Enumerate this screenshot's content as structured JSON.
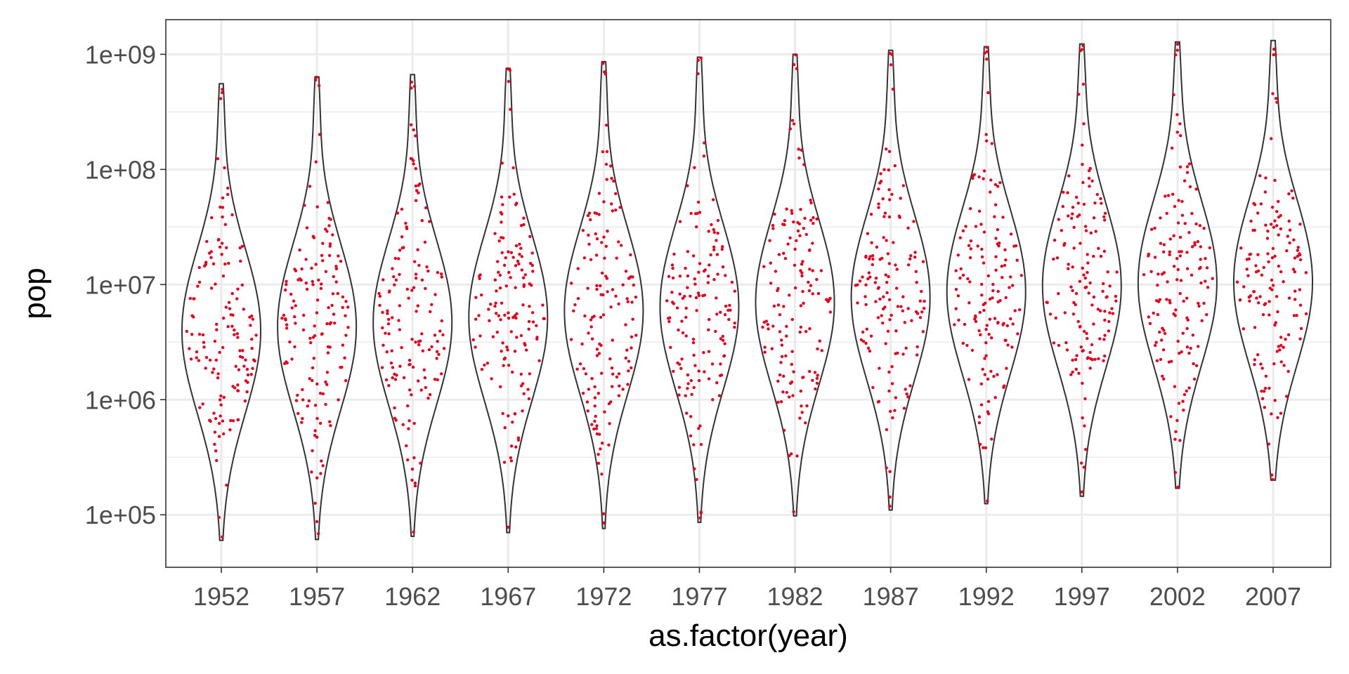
{
  "chart_data": {
    "type": "violin",
    "xlabel": "as.factor(year)",
    "ylabel": "pop",
    "y_scale": "log10",
    "ylim": [
      35000,
      2000000000
    ],
    "y_ticks": [
      {
        "value": 100000,
        "label": "1e+05"
      },
      {
        "value": 1000000,
        "label": "1e+06"
      },
      {
        "value": 10000000,
        "label": "1e+07"
      },
      {
        "value": 100000000,
        "label": "1e+08"
      },
      {
        "value": 1000000000,
        "label": "1e+09"
      }
    ],
    "grid": true,
    "categories": [
      "1952",
      "1957",
      "1962",
      "1967",
      "1972",
      "1977",
      "1982",
      "1987",
      "1992",
      "1997",
      "2002",
      "2007"
    ],
    "violin_range": [
      {
        "min": 60000,
        "max": 556000000
      },
      {
        "min": 61000,
        "max": 637000000
      },
      {
        "min": 65000,
        "max": 666000000
      },
      {
        "min": 70000,
        "max": 755000000
      },
      {
        "min": 76000,
        "max": 862000000
      },
      {
        "min": 86000,
        "max": 943000000
      },
      {
        "min": 98000,
        "max": 1000000000
      },
      {
        "min": 110000,
        "max": 1084000000
      },
      {
        "min": 125000,
        "max": 1165000000
      },
      {
        "min": 145000,
        "max": 1230000000
      },
      {
        "min": 170000,
        "max": 1280000000
      },
      {
        "min": 200000,
        "max": 1318000000
      }
    ],
    "median": [
      3950000,
      4300000,
      4690000,
      5170000,
      5880000,
      6400000,
      7000000,
      7770000,
      8690000,
      9740000,
      10370000,
      10520000
    ],
    "points_per_group": 142,
    "point_color": "#e8001c",
    "line_color": "#333333"
  }
}
